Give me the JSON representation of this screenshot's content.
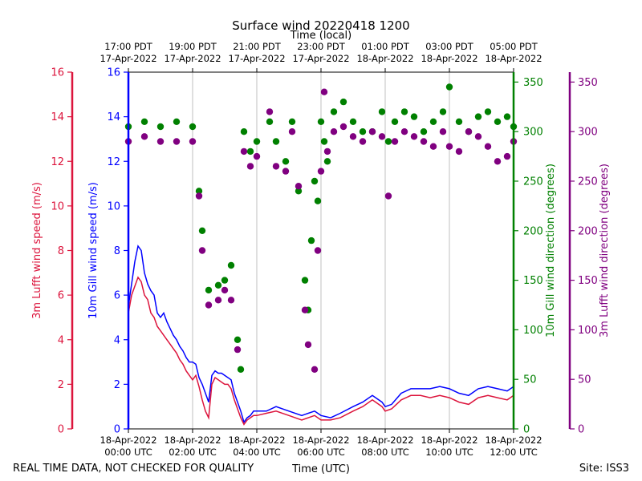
{
  "chart_data": {
    "type": "line",
    "title": "Surface wind 20220418 1200",
    "top_axis_label": "Time (local)",
    "xlabel": "Time (UTC)",
    "footer_left": "REAL TIME DATA, NOT CHECKED FOR QUALITY",
    "footer_right": "Site: ISS3",
    "x_range_hours": [
      0,
      12
    ],
    "bottom_ticks": [
      {
        "h": 0,
        "l1": "18-Apr-2022",
        "l2": "00:00 UTC"
      },
      {
        "h": 2,
        "l1": "18-Apr-2022",
        "l2": "02:00 UTC"
      },
      {
        "h": 4,
        "l1": "18-Apr-2022",
        "l2": "04:00 UTC"
      },
      {
        "h": 6,
        "l1": "18-Apr-2022",
        "l2": "06:00 UTC"
      },
      {
        "h": 8,
        "l1": "18-Apr-2022",
        "l2": "08:00 UTC"
      },
      {
        "h": 10,
        "l1": "18-Apr-2022",
        "l2": "10:00 UTC"
      },
      {
        "h": 12,
        "l1": "18-Apr-2022",
        "l2": "12:00 UTC"
      }
    ],
    "top_ticks": [
      {
        "h": 0,
        "l1": "17:00 PDT",
        "l2": "17-Apr-2022"
      },
      {
        "h": 2,
        "l1": "19:00 PDT",
        "l2": "17-Apr-2022"
      },
      {
        "h": 4,
        "l1": "21:00 PDT",
        "l2": "17-Apr-2022"
      },
      {
        "h": 6,
        "l1": "23:00 PDT",
        "l2": "17-Apr-2022"
      },
      {
        "h": 8,
        "l1": "01:00 PDT",
        "l2": "18-Apr-2022"
      },
      {
        "h": 10,
        "l1": "03:00 PDT",
        "l2": "18-Apr-2022"
      },
      {
        "h": 12,
        "l1": "05:00 PDT",
        "l2": "18-Apr-2022"
      }
    ],
    "y_axes": [
      {
        "key": "lufft_speed",
        "label": "3m Lufft wind speed (m/s)",
        "color": "#dc143c",
        "range": [
          0,
          16
        ],
        "ticks": [
          0,
          2,
          4,
          6,
          8,
          10,
          12,
          14,
          16
        ]
      },
      {
        "key": "gill_speed",
        "label": "10m Gill wind speed (m/s)",
        "color": "#0000ff",
        "range": [
          0,
          16
        ],
        "ticks": [
          0,
          2,
          4,
          6,
          8,
          10,
          12,
          14,
          16
        ]
      },
      {
        "key": "gill_dir",
        "label": "10m Gill wind direction (degrees)",
        "color": "#008000",
        "range": [
          0,
          360
        ],
        "ticks": [
          0,
          50,
          100,
          150,
          200,
          250,
          300,
          350
        ]
      },
      {
        "key": "lufft_dir",
        "label": "3m Lufft wind direction (degrees)",
        "color": "#800080",
        "range": [
          0,
          360
        ],
        "ticks": [
          0,
          50,
          100,
          150,
          200,
          250,
          300,
          350
        ]
      }
    ],
    "series": [
      {
        "name": "10m Gill wind speed",
        "kind": "line",
        "color": "#0000ff",
        "axis": "gill_speed",
        "points": [
          [
            0,
            5.5
          ],
          [
            0.1,
            6.5
          ],
          [
            0.2,
            7.5
          ],
          [
            0.3,
            8.2
          ],
          [
            0.4,
            8.0
          ],
          [
            0.5,
            7.0
          ],
          [
            0.6,
            6.5
          ],
          [
            0.7,
            6.2
          ],
          [
            0.8,
            6.0
          ],
          [
            0.9,
            5.2
          ],
          [
            1.0,
            5.0
          ],
          [
            1.1,
            5.2
          ],
          [
            1.2,
            4.8
          ],
          [
            1.3,
            4.5
          ],
          [
            1.4,
            4.2
          ],
          [
            1.5,
            4.0
          ],
          [
            1.6,
            3.7
          ],
          [
            1.7,
            3.5
          ],
          [
            1.8,
            3.2
          ],
          [
            1.9,
            3.0
          ],
          [
            2.0,
            3.0
          ],
          [
            2.1,
            2.9
          ],
          [
            2.2,
            2.3
          ],
          [
            2.3,
            2.0
          ],
          [
            2.4,
            1.6
          ],
          [
            2.5,
            1.2
          ],
          [
            2.6,
            2.4
          ],
          [
            2.7,
            2.6
          ],
          [
            2.8,
            2.5
          ],
          [
            2.9,
            2.5
          ],
          [
            3.0,
            2.4
          ],
          [
            3.1,
            2.3
          ],
          [
            3.2,
            2.2
          ],
          [
            3.3,
            1.6
          ],
          [
            3.4,
            1.2
          ],
          [
            3.5,
            0.8
          ],
          [
            3.6,
            0.3
          ],
          [
            3.7,
            0.5
          ],
          [
            3.8,
            0.6
          ],
          [
            3.9,
            0.8
          ],
          [
            4.0,
            0.8
          ],
          [
            4.3,
            0.8
          ],
          [
            4.6,
            1.0
          ],
          [
            5.0,
            0.8
          ],
          [
            5.4,
            0.6
          ],
          [
            5.8,
            0.8
          ],
          [
            6.0,
            0.6
          ],
          [
            6.3,
            0.5
          ],
          [
            6.6,
            0.7
          ],
          [
            7.0,
            1.0
          ],
          [
            7.3,
            1.2
          ],
          [
            7.6,
            1.5
          ],
          [
            7.9,
            1.2
          ],
          [
            8.0,
            1.0
          ],
          [
            8.2,
            1.1
          ],
          [
            8.5,
            1.6
          ],
          [
            8.8,
            1.8
          ],
          [
            9.1,
            1.8
          ],
          [
            9.4,
            1.8
          ],
          [
            9.7,
            1.9
          ],
          [
            10.0,
            1.8
          ],
          [
            10.3,
            1.6
          ],
          [
            10.6,
            1.5
          ],
          [
            10.9,
            1.8
          ],
          [
            11.2,
            1.9
          ],
          [
            11.5,
            1.8
          ],
          [
            11.8,
            1.7
          ],
          [
            12.0,
            1.9
          ]
        ]
      },
      {
        "name": "3m Lufft wind speed",
        "kind": "line",
        "color": "#dc143c",
        "axis": "lufft_speed",
        "points": [
          [
            0,
            5.2
          ],
          [
            0.1,
            6.0
          ],
          [
            0.2,
            6.4
          ],
          [
            0.3,
            6.8
          ],
          [
            0.4,
            6.6
          ],
          [
            0.5,
            6.0
          ],
          [
            0.6,
            5.8
          ],
          [
            0.7,
            5.2
          ],
          [
            0.8,
            5.0
          ],
          [
            0.9,
            4.6
          ],
          [
            1.0,
            4.4
          ],
          [
            1.1,
            4.2
          ],
          [
            1.2,
            4.0
          ],
          [
            1.3,
            3.8
          ],
          [
            1.4,
            3.6
          ],
          [
            1.5,
            3.4
          ],
          [
            1.6,
            3.1
          ],
          [
            1.7,
            2.9
          ],
          [
            1.8,
            2.6
          ],
          [
            1.9,
            2.4
          ],
          [
            2.0,
            2.2
          ],
          [
            2.1,
            2.4
          ],
          [
            2.2,
            1.9
          ],
          [
            2.3,
            1.3
          ],
          [
            2.4,
            0.8
          ],
          [
            2.5,
            0.5
          ],
          [
            2.6,
            2.0
          ],
          [
            2.7,
            2.3
          ],
          [
            2.8,
            2.2
          ],
          [
            2.9,
            2.1
          ],
          [
            3.0,
            2.0
          ],
          [
            3.1,
            2.0
          ],
          [
            3.2,
            1.8
          ],
          [
            3.3,
            1.3
          ],
          [
            3.4,
            0.9
          ],
          [
            3.5,
            0.5
          ],
          [
            3.6,
            0.2
          ],
          [
            3.7,
            0.4
          ],
          [
            3.8,
            0.5
          ],
          [
            3.9,
            0.6
          ],
          [
            4.0,
            0.6
          ],
          [
            4.3,
            0.7
          ],
          [
            4.6,
            0.8
          ],
          [
            5.0,
            0.6
          ],
          [
            5.4,
            0.4
          ],
          [
            5.8,
            0.6
          ],
          [
            6.0,
            0.4
          ],
          [
            6.3,
            0.4
          ],
          [
            6.6,
            0.5
          ],
          [
            7.0,
            0.8
          ],
          [
            7.3,
            1.0
          ],
          [
            7.6,
            1.3
          ],
          [
            7.9,
            1.0
          ],
          [
            8.0,
            0.8
          ],
          [
            8.2,
            0.9
          ],
          [
            8.5,
            1.3
          ],
          [
            8.8,
            1.5
          ],
          [
            9.1,
            1.5
          ],
          [
            9.4,
            1.4
          ],
          [
            9.7,
            1.5
          ],
          [
            10.0,
            1.4
          ],
          [
            10.3,
            1.2
          ],
          [
            10.6,
            1.1
          ],
          [
            10.9,
            1.4
          ],
          [
            11.2,
            1.5
          ],
          [
            11.5,
            1.4
          ],
          [
            11.8,
            1.3
          ],
          [
            12.0,
            1.5
          ]
        ]
      },
      {
        "name": "10m Gill wind direction",
        "kind": "scatter",
        "color": "#008000",
        "axis": "gill_dir",
        "points": [
          [
            0,
            305
          ],
          [
            0.5,
            310
          ],
          [
            1.0,
            305
          ],
          [
            1.5,
            310
          ],
          [
            2.0,
            305
          ],
          [
            2.2,
            240
          ],
          [
            2.3,
            200
          ],
          [
            2.5,
            140
          ],
          [
            2.8,
            145
          ],
          [
            3.0,
            150
          ],
          [
            3.2,
            165
          ],
          [
            3.4,
            90
          ],
          [
            3.5,
            60
          ],
          [
            3.6,
            300
          ],
          [
            3.8,
            280
          ],
          [
            4.0,
            290
          ],
          [
            4.4,
            310
          ],
          [
            4.6,
            290
          ],
          [
            4.9,
            270
          ],
          [
            5.1,
            310
          ],
          [
            5.3,
            240
          ],
          [
            5.5,
            150
          ],
          [
            5.6,
            120
          ],
          [
            5.7,
            190
          ],
          [
            5.8,
            250
          ],
          [
            5.9,
            230
          ],
          [
            6.0,
            310
          ],
          [
            6.1,
            290
          ],
          [
            6.2,
            270
          ],
          [
            6.4,
            320
          ],
          [
            6.7,
            330
          ],
          [
            7.0,
            310
          ],
          [
            7.3,
            300
          ],
          [
            7.6,
            300
          ],
          [
            7.9,
            320
          ],
          [
            8.1,
            290
          ],
          [
            8.3,
            310
          ],
          [
            8.6,
            320
          ],
          [
            8.9,
            315
          ],
          [
            9.2,
            300
          ],
          [
            9.5,
            310
          ],
          [
            9.8,
            320
          ],
          [
            10.0,
            345
          ],
          [
            10.3,
            310
          ],
          [
            10.6,
            300
          ],
          [
            10.9,
            315
          ],
          [
            11.2,
            320
          ],
          [
            11.5,
            310
          ],
          [
            11.8,
            315
          ],
          [
            12.0,
            305
          ]
        ]
      },
      {
        "name": "3m Lufft wind direction",
        "kind": "scatter",
        "color": "#800080",
        "axis": "lufft_dir",
        "points": [
          [
            0,
            290
          ],
          [
            0.5,
            295
          ],
          [
            1.0,
            290
          ],
          [
            1.5,
            290
          ],
          [
            2.0,
            290
          ],
          [
            2.2,
            235
          ],
          [
            2.3,
            180
          ],
          [
            2.5,
            125
          ],
          [
            2.8,
            130
          ],
          [
            3.0,
            140
          ],
          [
            3.2,
            130
          ],
          [
            3.4,
            80
          ],
          [
            3.6,
            280
          ],
          [
            3.8,
            265
          ],
          [
            4.0,
            275
          ],
          [
            4.4,
            320
          ],
          [
            4.6,
            265
          ],
          [
            4.9,
            260
          ],
          [
            5.1,
            300
          ],
          [
            5.3,
            245
          ],
          [
            5.5,
            120
          ],
          [
            5.6,
            85
          ],
          [
            5.8,
            60
          ],
          [
            5.9,
            180
          ],
          [
            6.0,
            260
          ],
          [
            6.1,
            340
          ],
          [
            6.2,
            280
          ],
          [
            6.4,
            300
          ],
          [
            6.7,
            305
          ],
          [
            7.0,
            295
          ],
          [
            7.3,
            290
          ],
          [
            7.6,
            300
          ],
          [
            7.9,
            295
          ],
          [
            8.1,
            235
          ],
          [
            8.3,
            290
          ],
          [
            8.6,
            300
          ],
          [
            8.9,
            295
          ],
          [
            9.2,
            290
          ],
          [
            9.5,
            285
          ],
          [
            9.8,
            300
          ],
          [
            10.0,
            285
          ],
          [
            10.3,
            280
          ],
          [
            10.6,
            300
          ],
          [
            10.9,
            295
          ],
          [
            11.2,
            285
          ],
          [
            11.5,
            270
          ],
          [
            11.8,
            275
          ],
          [
            12.0,
            290
          ]
        ]
      }
    ]
  }
}
